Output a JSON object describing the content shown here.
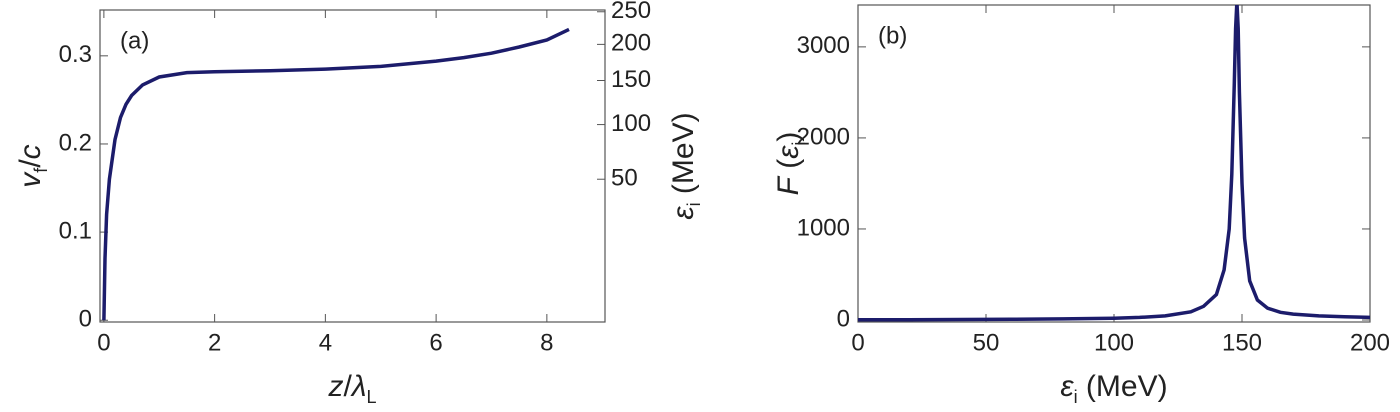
{
  "chart_data": [
    {
      "type": "line",
      "annotation": "(a)",
      "xlabel": [
        {
          "text": "z",
          "italic": true
        },
        {
          "text": "/",
          "italic": false
        },
        {
          "text": "λ",
          "italic": true
        },
        {
          "text": "L",
          "sub": true
        }
      ],
      "ylabel": [
        {
          "text": "v",
          "italic": true
        },
        {
          "text": "f",
          "sub": true
        },
        {
          "text": "/",
          "italic": false
        },
        {
          "text": "c",
          "italic": true
        }
      ],
      "y2label": [
        {
          "text": "ε",
          "italic": true
        },
        {
          "text": "i",
          "sub": true
        },
        {
          "text": " (MeV)",
          "italic": false
        }
      ],
      "x": [
        0,
        0.02,
        0.05,
        0.1,
        0.2,
        0.3,
        0.4,
        0.5,
        0.7,
        1,
        1.5,
        2,
        3,
        4,
        5,
        6,
        6.5,
        7,
        7.5,
        8,
        8.4
      ],
      "series": [
        {
          "color": "#1c1c6b",
          "values": [
            0,
            0.07,
            0.12,
            0.16,
            0.205,
            0.23,
            0.245,
            0.255,
            0.267,
            0.276,
            0.281,
            0.282,
            0.283,
            0.285,
            0.288,
            0.294,
            0.298,
            0.303,
            0.31,
            0.318,
            0.33
          ]
        }
      ],
      "xlim": [
        -0.07,
        9.05
      ],
      "xticks": [
        0,
        2,
        4,
        6,
        8
      ],
      "ylim": [
        -0.002,
        0.352
      ],
      "yticks": [
        0,
        0.1,
        0.2,
        0.3
      ],
      "y2ticks": [
        50,
        100,
        150,
        200,
        250
      ],
      "y2tick_at_y": [
        0.16,
        0.222,
        0.272,
        0.313,
        0.35
      ]
    },
    {
      "type": "line",
      "annotation": "(b)",
      "xlabel": [
        {
          "text": "ε",
          "italic": true
        },
        {
          "text": "i",
          "sub": true
        },
        {
          "text": " (MeV)",
          "italic": false
        }
      ],
      "ylabel": [
        {
          "text": "F",
          "italic": true
        },
        {
          "text": " (",
          "italic": false
        },
        {
          "text": "ε",
          "italic": true
        },
        {
          "text": "i",
          "sub": true
        },
        {
          "text": ")",
          "italic": false
        }
      ],
      "x": [
        0,
        20,
        40,
        60,
        80,
        100,
        110,
        120,
        130,
        135,
        140,
        143,
        145,
        146,
        147,
        147.5,
        148,
        148.5,
        149,
        150,
        151,
        153,
        156,
        160,
        165,
        170,
        180,
        190,
        200
      ],
      "series": [
        {
          "color": "#1c1c6b",
          "values": [
            2,
            3,
            5,
            8,
            12,
            20,
            28,
            45,
            90,
            150,
            280,
            550,
            1000,
            1600,
            2600,
            3200,
            3500,
            3200,
            2500,
            1500,
            900,
            430,
            220,
            130,
            85,
            65,
            45,
            35,
            28
          ]
        }
      ],
      "xlim": [
        0,
        200
      ],
      "xticks": [
        0,
        50,
        100,
        150,
        200
      ],
      "ylim": [
        -22,
        3460
      ],
      "yticks": [
        0,
        1000,
        2000,
        3000
      ]
    }
  ]
}
